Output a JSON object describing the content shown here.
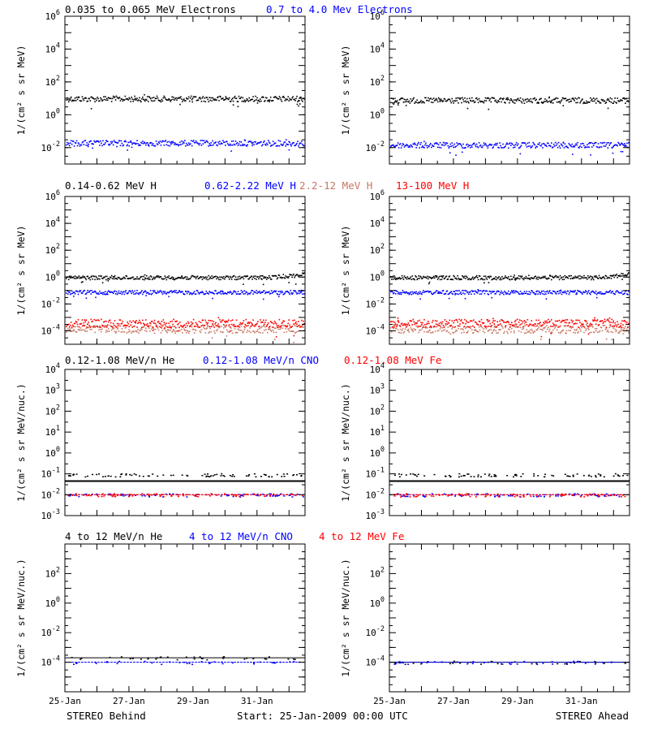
{
  "colors": {
    "black": "#000000",
    "blue": "#0000ff",
    "tan": "#c87864",
    "red": "#ff0000"
  },
  "x_axis": {
    "tick_labels": [
      "25-Jan",
      "27-Jan",
      "29-Jan",
      "31-Jan"
    ],
    "xlim": [
      "2009-01-25",
      "2009-02-01T12:00"
    ]
  },
  "footer": {
    "left": "STEREO Behind",
    "center": "Start: 25-Jan-2009 00:00 UTC",
    "right": "STEREO Ahead"
  },
  "chart_data": [
    {
      "type": "scatter",
      "row": "electrons",
      "scale": "log",
      "ylim": [
        0.001,
        1000000
      ],
      "ylabel": "1/(cm² s sr MeV)",
      "yticks": [
        {
          "base": "10",
          "exp": "6",
          "v": 1000000
        },
        {
          "base": "10",
          "exp": "4",
          "v": 10000
        },
        {
          "base": "10",
          "exp": "2",
          "v": 100
        },
        {
          "base": "10",
          "exp": "0",
          "v": 1
        },
        {
          "base": "10",
          "exp": "-2",
          "v": 0.01
        }
      ],
      "legend": [
        {
          "label": "0.035 to 0.065 MeV Electrons",
          "color": "black"
        },
        {
          "label": "0.7 to 4.0 Mev Electrons",
          "color": "blue"
        }
      ],
      "series": [
        {
          "name": "0.035 to 0.065 MeV Electrons",
          "color": "black",
          "panels": {
            "behind": 10,
            "ahead": 8
          }
        },
        {
          "name": "0.7 to 4.0 Mev Electrons",
          "color": "blue",
          "panels": {
            "behind": 0.02,
            "ahead": 0.015
          }
        }
      ]
    },
    {
      "type": "scatter",
      "row": "protons",
      "scale": "log",
      "ylim": [
        1e-05,
        1000000
      ],
      "ylabel": "1/(cm² s sr MeV)",
      "yticks": [
        {
          "base": "10",
          "exp": "6",
          "v": 1000000
        },
        {
          "base": "10",
          "exp": "4",
          "v": 10000
        },
        {
          "base": "10",
          "exp": "2",
          "v": 100
        },
        {
          "base": "10",
          "exp": "0",
          "v": 1
        },
        {
          "base": "10",
          "exp": "-2",
          "v": 0.01
        },
        {
          "base": "10",
          "exp": "-4",
          "v": 0.0001
        }
      ],
      "legend": [
        {
          "label": "0.14-0.62 MeV H",
          "color": "black"
        },
        {
          "label": "0.62-2.22 MeV H",
          "color": "blue"
        },
        {
          "label": "2.2-12 MeV H",
          "color": "tan"
        },
        {
          "label": "13-100 MeV H",
          "color": "red"
        }
      ],
      "series": [
        {
          "name": "0.14-0.62 MeV H",
          "color": "black",
          "panels": {
            "behind": 1.0,
            "ahead": 1.0
          }
        },
        {
          "name": "0.62-2.22 MeV H",
          "color": "blue",
          "panels": {
            "behind": 0.08,
            "ahead": 0.08
          }
        },
        {
          "name": "2.2-12 MeV H",
          "color": "tan",
          "panels": {
            "behind": 0.00015,
            "ahead": 0.00015
          }
        },
        {
          "name": "13-100 MeV H",
          "color": "red",
          "panels": {
            "behind": 0.0004,
            "ahead": 0.0004
          }
        }
      ]
    },
    {
      "type": "scatter",
      "row": "heavy_ions_low",
      "scale": "log",
      "ylim": [
        0.001,
        10000
      ],
      "ylabel": "1/(cm² s sr MeV/nuc.)",
      "yticks": [
        {
          "base": "10",
          "exp": "4",
          "v": 10000
        },
        {
          "base": "10",
          "exp": "3",
          "v": 1000
        },
        {
          "base": "10",
          "exp": "2",
          "v": 100
        },
        {
          "base": "10",
          "exp": "1",
          "v": 10
        },
        {
          "base": "10",
          "exp": "0",
          "v": 1
        },
        {
          "base": "10",
          "exp": "-1",
          "v": 0.1
        },
        {
          "base": "10",
          "exp": "-2",
          "v": 0.01
        },
        {
          "base": "10",
          "exp": "-3",
          "v": 0.001
        }
      ],
      "legend": [
        {
          "label": "0.12-1.08 MeV/n He",
          "color": "black"
        },
        {
          "label": "0.12-1.08 MeV/n CNO",
          "color": "blue"
        },
        {
          "label": "0.12-1.08 MeV Fe",
          "color": "red"
        }
      ],
      "series": [
        {
          "name": "0.12-1.08 MeV/n He",
          "color": "black",
          "panels": {
            "behind": 0.09,
            "ahead": 0.09
          }
        },
        {
          "name": "0.12-1.08 MeV/n CNO",
          "color": "blue",
          "panels": {
            "behind": 0.01,
            "ahead": 0.01
          }
        },
        {
          "name": "0.12-1.08 MeV Fe",
          "color": "red",
          "panels": {
            "behind": 0.01,
            "ahead": 0.01
          }
        }
      ]
    },
    {
      "type": "scatter",
      "row": "heavy_ions_high",
      "scale": "log",
      "ylim": [
        1e-06,
        10000
      ],
      "ylabel": "1/(cm² s sr MeV/nuc.)",
      "yticks": [
        {
          "base": "10",
          "exp": "2",
          "v": 100
        },
        {
          "base": "10",
          "exp": "0",
          "v": 1
        },
        {
          "base": "10",
          "exp": "-2",
          "v": 0.01
        },
        {
          "base": "10",
          "exp": "-4",
          "v": 0.0001
        }
      ],
      "legend": [
        {
          "label": "4 to 12 MeV/n He",
          "color": "black"
        },
        {
          "label": "4 to 12 MeV/n CNO",
          "color": "blue"
        },
        {
          "label": "4 to 12 MeV Fe",
          "color": "red"
        }
      ],
      "series": [
        {
          "name": "4 to 12 MeV/n He",
          "color": "black",
          "panels": {
            "behind": 0.0002,
            "ahead": 0.0001
          }
        },
        {
          "name": "4 to 12 MeV/n CNO",
          "color": "blue",
          "panels": {
            "behind": 0.0001,
            "ahead": 0.0001
          }
        },
        {
          "name": "4 to 12 MeV Fe",
          "color": "red",
          "panels": {
            "behind": 1e-06,
            "ahead": 1e-06
          }
        }
      ]
    }
  ]
}
